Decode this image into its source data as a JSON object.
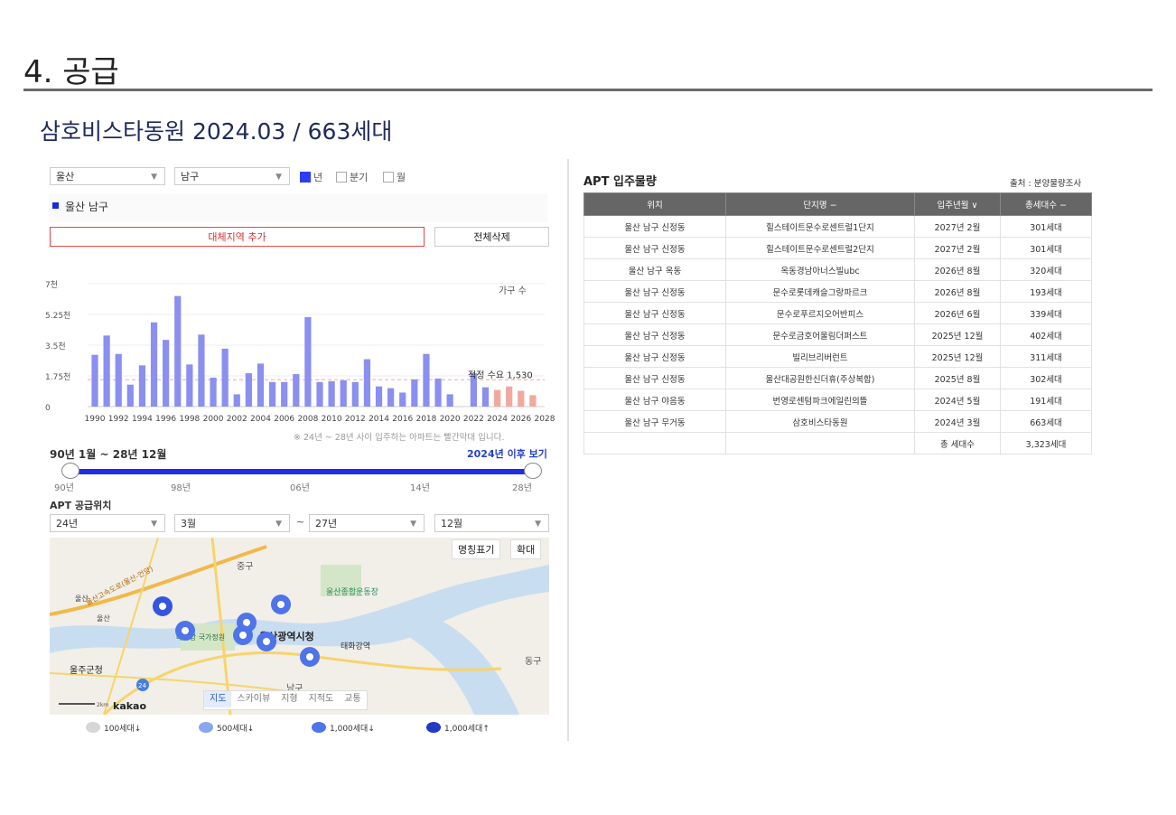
{
  "section": {
    "title": "4. 공급"
  },
  "project": {
    "heading": "삼호비스타동원 2024.03 / 663세대"
  },
  "filters": {
    "region1": "울산",
    "region2": "남구",
    "period_options": [
      {
        "label": "년",
        "checked": true
      },
      {
        "label": "분기",
        "checked": false
      },
      {
        "label": "월",
        "checked": false
      }
    ]
  },
  "legend": {
    "label": "울산 남구",
    "color": "#1a2bd6"
  },
  "buttons": {
    "add_region": "대체지역 추가",
    "clear_all": "전체삭제"
  },
  "chart_data": {
    "type": "bar",
    "ylabel": "가구 수",
    "yticks": [
      "0",
      "1.75천",
      "3.5천",
      "5.25천",
      "7천"
    ],
    "ylim": [
      0,
      7000
    ],
    "x_labels": [
      "1990",
      "1992",
      "1994",
      "1996",
      "1998",
      "2000",
      "2002",
      "2004",
      "2006",
      "2008",
      "2010",
      "2012",
      "2014",
      "2016",
      "2018",
      "2020",
      "2022",
      "2024",
      "2026",
      "2028"
    ],
    "years": [
      1990,
      1991,
      1992,
      1993,
      1994,
      1995,
      1996,
      1997,
      1998,
      1999,
      2000,
      2001,
      2002,
      2003,
      2004,
      2005,
      2006,
      2007,
      2008,
      2009,
      2010,
      2011,
      2012,
      2013,
      2014,
      2015,
      2016,
      2017,
      2018,
      2019,
      2020,
      2021,
      2022,
      2023,
      2024,
      2025,
      2026,
      2027
    ],
    "values": [
      2950,
      4050,
      3000,
      1250,
      2350,
      4800,
      3800,
      6300,
      2400,
      4100,
      1650,
      3300,
      700,
      1900,
      2450,
      1400,
      1400,
      1850,
      5100,
      1400,
      1450,
      1500,
      1400,
      2700,
      1150,
      1050,
      800,
      1550,
      3000,
      1600,
      700,
      0,
      1900,
      1100,
      950,
      1150,
      900,
      650
    ],
    "highlight_from": 2024,
    "bar_color": "#8b8ff0",
    "highlight_color": "#f2a89e",
    "proper_demand": {
      "label": "적정 수요 1,530",
      "value": 1530
    },
    "note": "※ 24년 ~ 28년 사이 입주하는 아파트는 빨간막대 입니다."
  },
  "slider": {
    "range_label": "90년 1월 ~ 28년 12월",
    "after_link": "2024년 이후 보기",
    "labels": [
      "90년",
      "98년",
      "06년",
      "14년",
      "28년"
    ]
  },
  "supply_location": {
    "label": "APT 공급위치",
    "from_year": "24년",
    "from_month": "3월",
    "tilde": "~",
    "to_year": "27년",
    "to_month": "12월"
  },
  "map": {
    "btn_name_display": "명칭표기",
    "btn_zoom": "확대",
    "types": [
      "지도",
      "스카이뷰",
      "지형",
      "지적도",
      "교통"
    ],
    "provider": "kakao",
    "scale": "2km",
    "labels": {
      "jung_gu": "중구",
      "dong_gu": "동구",
      "nam_gu": "남구",
      "city_hall": "울산광역시청",
      "sports": "울산종합운동장",
      "taehwagang_station": "태화강역",
      "ulju": "울주군청",
      "ulsan1": "울산",
      "ulsan2": "울산",
      "taehwa_garden": "태화강 국가정원",
      "expressway": "울산고속도로(울산-언양)",
      "route_number": "24"
    },
    "legend": [
      "100세대↓",
      "500세대↓",
      "1,000세대↓",
      "1,000세대↑"
    ]
  },
  "table": {
    "title": "APT 입주물량",
    "source": "출처 : 분양물량조사",
    "headers": [
      "위치",
      "단지명 −",
      "입주년월 ∨",
      "총세대수 −"
    ],
    "rows": [
      [
        "울산 남구 신정동",
        "힐스테이트문수로센트럴1단지",
        "2027년 2월",
        "301세대"
      ],
      [
        "울산 남구 신정동",
        "힐스테이트문수로센트럴2단지",
        "2027년 2월",
        "301세대"
      ],
      [
        "울산 남구 옥동",
        "옥동경남아너스빌ubc",
        "2026년 8월",
        "320세대"
      ],
      [
        "울산 남구 신정동",
        "문수로롯데캐슬그랑파르크",
        "2026년 8월",
        "193세대"
      ],
      [
        "울산 남구 신정동",
        "문수로푸르지오어반피스",
        "2026년 6월",
        "339세대"
      ],
      [
        "울산 남구 신정동",
        "문수로금호어울림더퍼스트",
        "2025년 12월",
        "402세대"
      ],
      [
        "울산 남구 신정동",
        "빌리브리버런트",
        "2025년 12월",
        "311세대"
      ],
      [
        "울산 남구 신정동",
        "울산대공원한신더휴(주상복합)",
        "2025년 8월",
        "302세대"
      ],
      [
        "울산 남구 야음동",
        "번영로센텀파크에일린의뜰",
        "2024년 5월",
        "191세대"
      ],
      [
        "울산 남구 무거동",
        "삼호비스타동원",
        "2024년 3월",
        "663세대"
      ]
    ],
    "total_label": "총 세대수",
    "total_value": "3,323세대"
  }
}
